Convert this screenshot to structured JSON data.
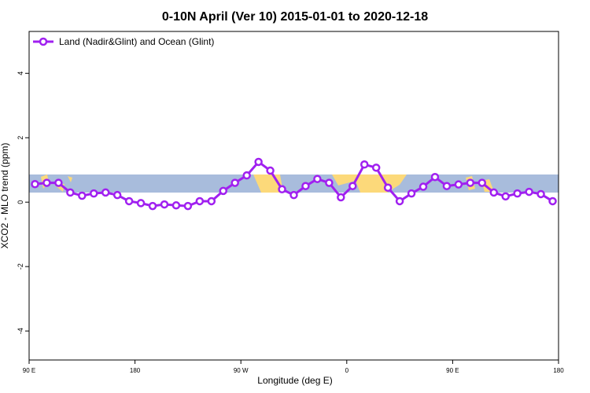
{
  "chart_data": {
    "type": "line",
    "title": "0-10N April (Ver 10)   2015-01-01 to 2020-12-18",
    "x_label": "Longitude (deg E)",
    "y_label": "XCO2 - MLO trend (ppm)",
    "x": [
      95,
      105,
      115,
      125,
      135,
      145,
      155,
      165,
      175,
      185,
      195,
      205,
      215,
      225,
      235,
      245,
      255,
      265,
      275,
      285,
      295,
      305,
      315,
      325,
      335,
      345,
      355,
      365,
      375,
      385,
      395,
      405,
      415,
      425,
      435,
      445,
      455,
      465,
      475,
      485,
      495,
      505,
      515,
      525,
      535
    ],
    "series": [
      {
        "name": "Land (Nadir&Glint) and Ocean (Glint)",
        "color": "#a020f0",
        "values": [
          0.56,
          0.6,
          0.6,
          0.3,
          0.2,
          0.27,
          0.3,
          0.22,
          0.03,
          -0.03,
          -0.12,
          -0.07,
          -0.1,
          -0.12,
          0.03,
          0.03,
          0.35,
          0.6,
          0.83,
          1.25,
          0.98,
          0.4,
          0.22,
          0.5,
          0.72,
          0.6,
          0.15,
          0.5,
          1.17,
          1.07,
          0.45,
          0.03,
          0.27,
          0.48,
          0.78,
          0.5,
          0.55,
          0.6,
          0.6,
          0.3,
          0.18,
          0.27,
          0.32,
          0.25,
          0.03
        ]
      }
    ],
    "xlim": [
      90,
      540
    ],
    "xticks": [
      {
        "value": 90,
        "label": "90 E"
      },
      {
        "value": 180,
        "label": "180"
      },
      {
        "value": 270,
        "label": "90 W"
      },
      {
        "value": 360,
        "label": "0"
      },
      {
        "value": 450,
        "label": "90 E"
      },
      {
        "value": 540,
        "label": "180"
      }
    ],
    "ylim": [
      -4.9,
      5.3
    ],
    "yticks": [
      -4,
      -2,
      0,
      2,
      4
    ],
    "legend": "top-left"
  }
}
